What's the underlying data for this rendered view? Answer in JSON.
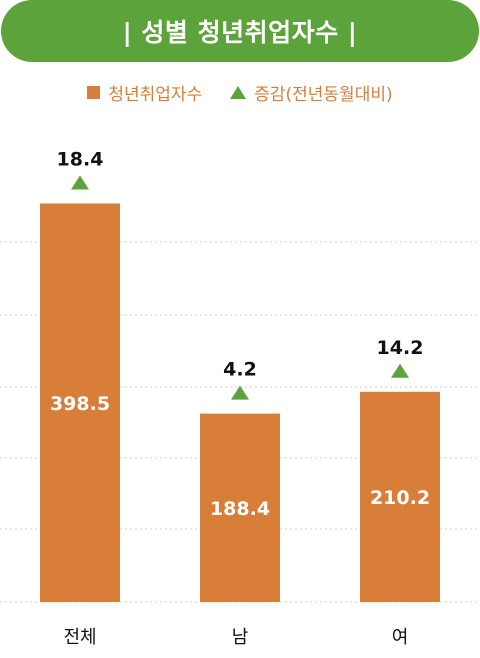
{
  "title": "| 성별 청년취업자수 |",
  "legend": {
    "series1": "청년취업자수",
    "series2": "증감(전년동월대비)"
  },
  "colors": {
    "title_bg": "#5ba33a",
    "bar": "#d97e38",
    "triangle": "#5ba33a",
    "grid": "#cfcfcf"
  },
  "chart_data": {
    "type": "bar",
    "categories": [
      "전체",
      "남",
      "여"
    ],
    "series": [
      {
        "name": "청년취업자수",
        "values": [
          398.5,
          188.4,
          210.2
        ]
      },
      {
        "name": "증감(전년동월대비)",
        "values": [
          18.4,
          4.2,
          14.2
        ],
        "direction": [
          "up",
          "up",
          "up"
        ]
      }
    ],
    "ylim": [
      0,
      400
    ],
    "grid": true,
    "legend_position": "top"
  }
}
